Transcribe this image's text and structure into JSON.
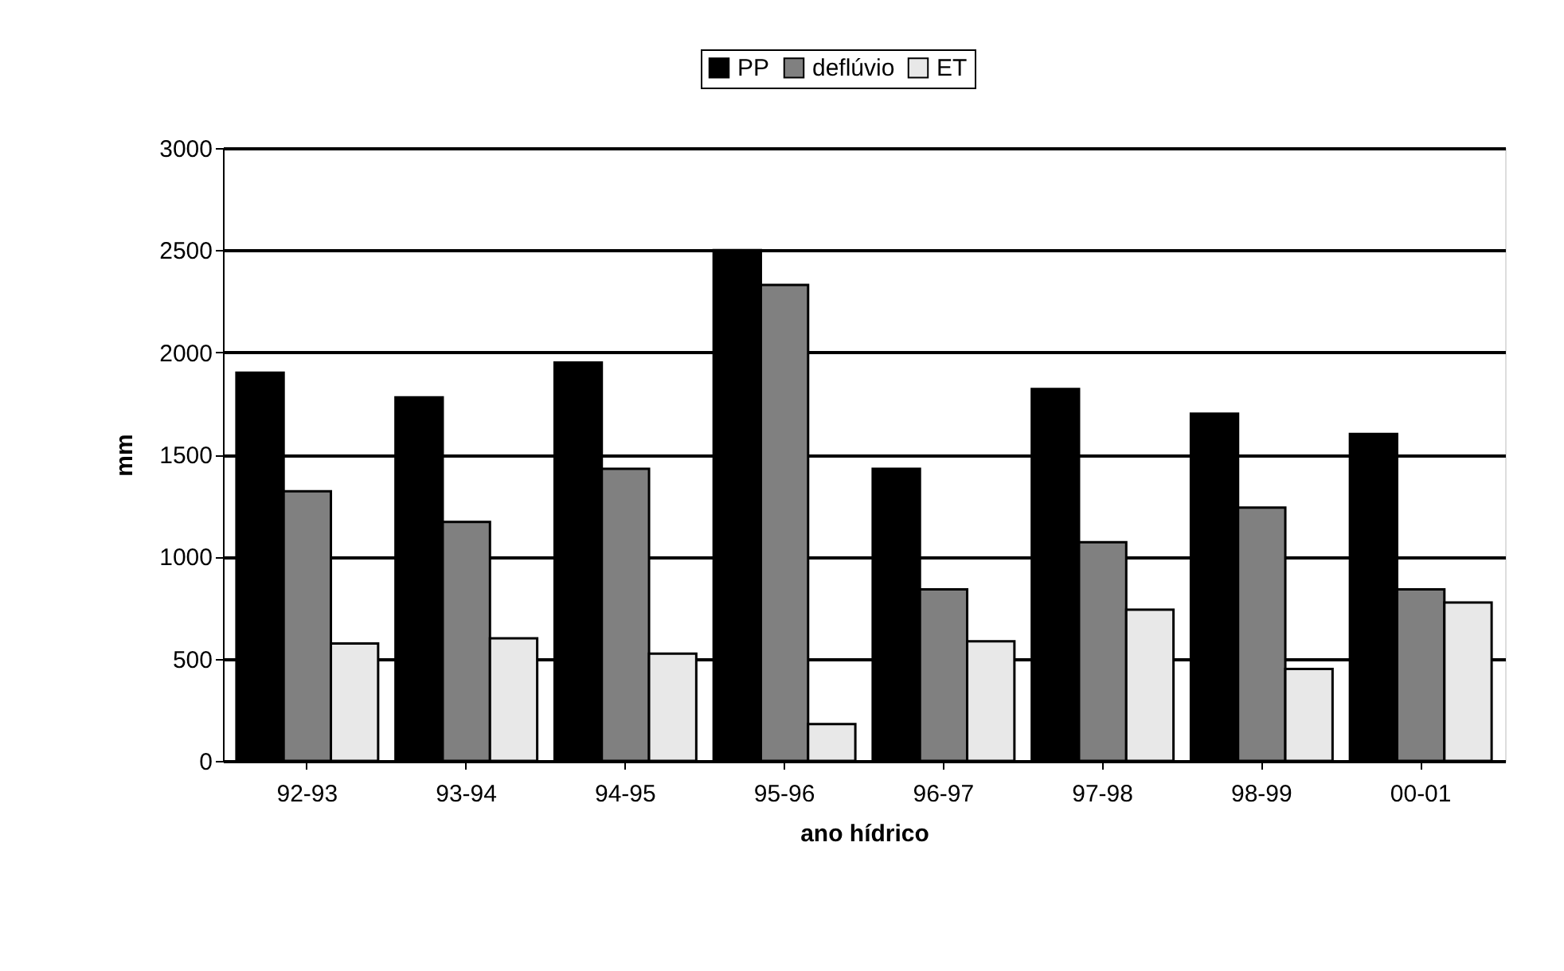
{
  "chart_data": {
    "type": "bar",
    "xlabel": "ano hídrico",
    "ylabel": "mm",
    "categories": [
      "92-93",
      "93-94",
      "94-95",
      "95-96",
      "96-97",
      "97-98",
      "98-99",
      "00-01"
    ],
    "series": [
      {
        "name": "PP",
        "color": "#000000",
        "values": [
          1900,
          1780,
          1950,
          2500,
          1430,
          1820,
          1700,
          1600
        ]
      },
      {
        "name": "deflúvio",
        "color": "#808080",
        "values": [
          1320,
          1170,
          1430,
          2330,
          840,
          1070,
          1240,
          840
        ]
      },
      {
        "name": "ET",
        "color": "#e8e8e8",
        "values": [
          575,
          600,
          525,
          180,
          585,
          740,
          450,
          775
        ]
      }
    ],
    "ylim": [
      0,
      3000
    ],
    "yticks": [
      0,
      500,
      1000,
      1500,
      2000,
      2500,
      3000
    ],
    "grid": "y",
    "legend": "top"
  }
}
